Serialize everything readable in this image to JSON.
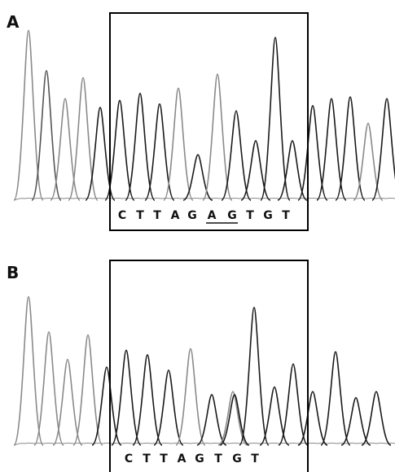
{
  "panels": [
    {
      "label": "A",
      "sequence": [
        "C",
        "T",
        "T",
        "A",
        "G",
        "A",
        "G",
        "T",
        "G",
        "T"
      ],
      "underlined_indices": [
        5,
        6
      ],
      "peaks": [
        {
          "h": 0.97,
          "tone": "light"
        },
        {
          "h": 0.74,
          "tone": "mid"
        },
        {
          "h": 0.58,
          "tone": "light"
        },
        {
          "h": 0.7,
          "tone": "light"
        },
        {
          "h": 0.53,
          "tone": "dark"
        },
        {
          "h": 0.57,
          "tone": "dark"
        },
        {
          "h": 0.61,
          "tone": "dark"
        },
        {
          "h": 0.55,
          "tone": "dark"
        },
        {
          "h": 0.64,
          "tone": "light"
        },
        {
          "h": 0.26,
          "tone": "dark"
        },
        {
          "h": 0.72,
          "tone": "light"
        },
        {
          "h": 0.51,
          "tone": "dark"
        },
        {
          "h": 0.34,
          "tone": "dark"
        },
        {
          "h": 0.93,
          "tone": "dark"
        },
        {
          "h": 0.34,
          "tone": "dark"
        },
        {
          "h": 0.54,
          "tone": "dark"
        },
        {
          "h": 0.58,
          "tone": "dark"
        },
        {
          "h": 0.59,
          "tone": "dark"
        },
        {
          "h": 0.44,
          "tone": "light"
        },
        {
          "h": 0.58,
          "tone": "dark"
        }
      ]
    },
    {
      "label": "B",
      "sequence": [
        "C",
        "T",
        "T",
        "A",
        "G",
        "T",
        "G",
        "T"
      ],
      "underlined_indices": [],
      "peaks": [
        {
          "h": 0.97,
          "tone": "light"
        },
        {
          "h": 0.74,
          "tone": "light"
        },
        {
          "h": 0.56,
          "tone": "light"
        },
        {
          "h": 0.72,
          "tone": "light"
        },
        {
          "h": 0.51,
          "tone": "dark"
        },
        {
          "h": 0.62,
          "tone": "dark"
        },
        {
          "h": 0.59,
          "tone": "dark"
        },
        {
          "h": 0.49,
          "tone": "dark"
        },
        {
          "h": 0.63,
          "tone": "light"
        },
        {
          "h": 0.33,
          "tone": "dark"
        },
        {
          "h": 0.35,
          "tone": "light"
        },
        {
          "h": 0.33,
          "tone": "dark"
        },
        {
          "h": 0.9,
          "tone": "dark"
        },
        {
          "h": 0.38,
          "tone": "dark"
        },
        {
          "h": 0.53,
          "tone": "dark"
        },
        {
          "h": 0.35,
          "tone": "dark"
        },
        {
          "h": 0.61,
          "tone": "dark"
        },
        {
          "h": 0.31,
          "tone": "dark"
        },
        {
          "h": 0.35,
          "tone": "dark"
        }
      ]
    }
  ],
  "colors": {
    "dark": "#1a1a1a",
    "mid": "#555555",
    "light": "#8a8a8a"
  }
}
